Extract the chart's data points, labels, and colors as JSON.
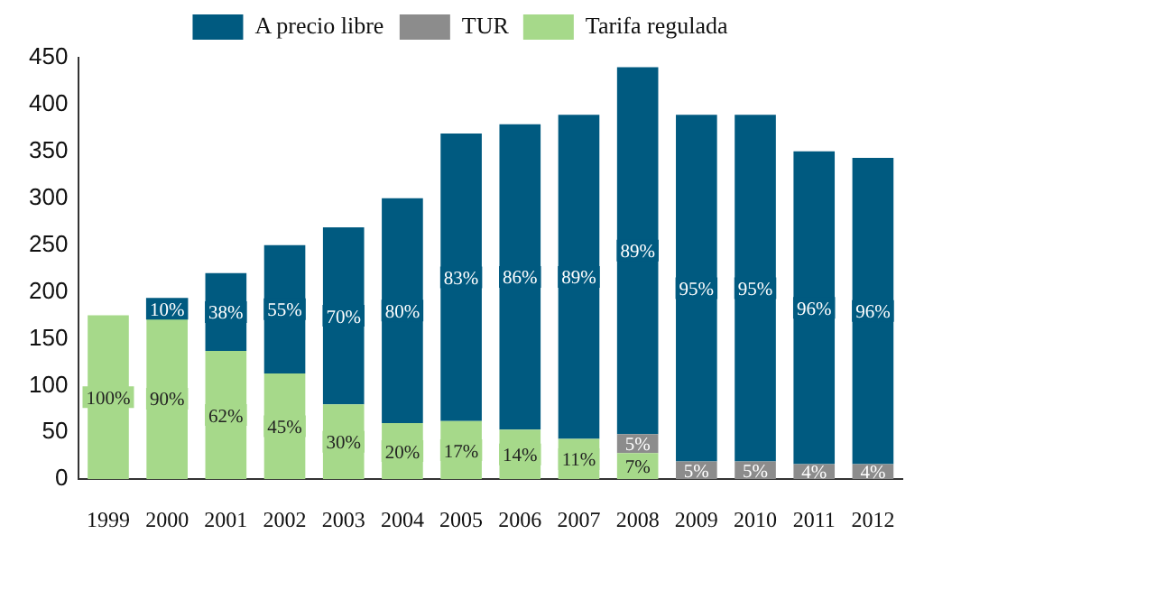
{
  "chart_data": {
    "type": "bar",
    "stacked": true,
    "categories": [
      "1999",
      "2000",
      "2001",
      "2002",
      "2003",
      "2004",
      "2005",
      "2006",
      "2007",
      "2008",
      "2009",
      "2010",
      "2011",
      "2012"
    ],
    "series": [
      {
        "name": "Tarifa regulada",
        "color": "#a6d98a",
        "values": [
          175,
          172,
          137,
          113,
          80,
          60,
          62,
          53,
          43,
          28,
          null,
          null,
          null,
          null
        ]
      },
      {
        "name": "TUR",
        "color": "#8c8c8c",
        "values": [
          null,
          null,
          null,
          null,
          null,
          null,
          null,
          null,
          null,
          20,
          19,
          19,
          16,
          16
        ]
      },
      {
        "name": "A precio libre",
        "color": "#005a80",
        "values": [
          null,
          20,
          83,
          137,
          189,
          240,
          307,
          326,
          346,
          392,
          370,
          370,
          334,
          327
        ]
      }
    ],
    "annotations": [
      "100%",
      "90%",
      "62%",
      "45%",
      "30%",
      "20%",
      "17%",
      "14%",
      "11%",
      "7%",
      "5%",
      "5%",
      "5%",
      "4%",
      "4%",
      "10%",
      "38%",
      "55%",
      "70%",
      "80%",
      "83%",
      "86%",
      "89%",
      "89%",
      "95%",
      "95%",
      "96%",
      "96%"
    ],
    "ylim": [
      0,
      450
    ],
    "yticks": [
      0,
      50,
      100,
      150,
      200,
      250,
      300,
      350,
      400,
      450
    ],
    "grid": false,
    "legend": "top"
  }
}
